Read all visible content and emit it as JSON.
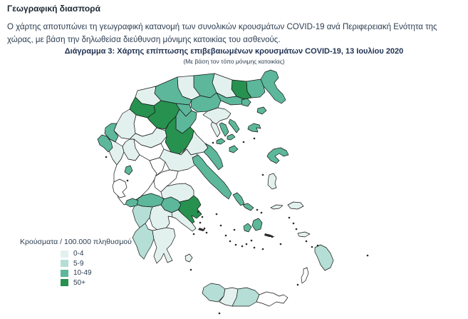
{
  "header": {
    "title": "Γεωγραφική διασπορά",
    "description": "Ο χάρτης αποτυπώνει τη γεωγραφική κατανομή των συνολικών κρουσμάτων COVID-19 ανά Περιφερειακή Ενότητα της χώρας, με βάση την δηλωθείσα διεύθυνση μόνιμης κατοικίας του ασθενούς."
  },
  "figure": {
    "title": "Διάγραμμα 3: Χάρτης επίπτωσης επιβεβαιωμένων κρουσμάτων COVID-19, 13 Ιουλίου 2020",
    "subtitle": "(Με βάση τον τόπο μόνιμης κατοικίας)"
  },
  "legend": {
    "title": "Κρούσματα / 100.000 πληθυσμού"
  },
  "chart_data": {
    "type": "heatmap",
    "subtype": "choropleth-map",
    "geography": "Ελλάδα — Περιφερειακές Ενότητες",
    "date": "13 Ιουλίου 2020",
    "unit": "κρούσματα ανά 100.000 πληθυσμού",
    "no_case_color": "#ffffff",
    "border_color": "#141414",
    "categories": [
      {
        "key": "0-4",
        "label": "0-4",
        "color": "#e3f1ee"
      },
      {
        "key": "5-9",
        "label": "5-9",
        "color": "#b4ded6"
      },
      {
        "key": "10-49",
        "label": "10-49",
        "color": "#5db79a"
      },
      {
        "key": "50+",
        "label": "50+",
        "color": "#27914f"
      }
    ],
    "regions": [
      {
        "id": "evros",
        "name": "Έβρος",
        "range": "10-49"
      },
      {
        "id": "rodopi",
        "name": "Ροδόπη",
        "range": "10-49"
      },
      {
        "id": "xanthi",
        "name": "Ξάνθη",
        "range": "50+"
      },
      {
        "id": "drama",
        "name": "Δράμα",
        "range": "0-4"
      },
      {
        "id": "kavala",
        "name": "Καβάλα",
        "range": "10-49"
      },
      {
        "id": "serres",
        "name": "Σέρρες",
        "range": "10-49"
      },
      {
        "id": "kilkis",
        "name": "Κιλκίς",
        "range": "0-4"
      },
      {
        "id": "pella",
        "name": "Πέλλα",
        "range": "10-49"
      },
      {
        "id": "florina",
        "name": "Φλώρινα",
        "range": "0-4"
      },
      {
        "id": "kastoria",
        "name": "Καστοριά",
        "range": "50+"
      },
      {
        "id": "kozani",
        "name": "Κοζάνη",
        "range": "50+"
      },
      {
        "id": "imathia",
        "name": "Ημαθία",
        "range": "10-49"
      },
      {
        "id": "pieria",
        "name": "Πιερία",
        "range": "10-49"
      },
      {
        "id": "thessaloniki",
        "name": "Θεσσαλονίκη",
        "range": "10-49"
      },
      {
        "id": "chalkidiki",
        "name": "Χαλκιδική",
        "range": "0-4"
      },
      {
        "id": "agion_oros",
        "name": "Άγιον Όρος",
        "range": "10-49"
      },
      {
        "id": "thasos",
        "name": "Θάσος",
        "range": "10-49"
      },
      {
        "id": "samothraki",
        "name": "Σαμοθράκη",
        "range": "10-49"
      },
      {
        "id": "grevena",
        "name": "Γρεβενά",
        "range": "none"
      },
      {
        "id": "ioannina",
        "name": "Ιωάννινα",
        "range": "0-4"
      },
      {
        "id": "thesprotia",
        "name": "Θεσπρωτία",
        "range": "10-49"
      },
      {
        "id": "preveza",
        "name": "Πρέβεζα",
        "range": "0-4"
      },
      {
        "id": "arta",
        "name": "Άρτα",
        "range": "0-4"
      },
      {
        "id": "trikala",
        "name": "Τρίκαλα",
        "range": "0-4"
      },
      {
        "id": "karditsa",
        "name": "Καρδίτσα",
        "range": "none"
      },
      {
        "id": "larissa",
        "name": "Λάρισα",
        "range": "50+"
      },
      {
        "id": "magnisia",
        "name": "Μαγνησία",
        "range": "0-4"
      },
      {
        "id": "pilio",
        "name": "Πήλιο (Μαγνησία)",
        "range": "10-49"
      },
      {
        "id": "sporades",
        "name": "Σποράδες",
        "range": "10-49"
      },
      {
        "id": "skyros",
        "name": "Σκύρος",
        "range": "10-49"
      },
      {
        "id": "fthiotida",
        "name": "Φθιώτιδα",
        "range": "0-4"
      },
      {
        "id": "evrytania",
        "name": "Ευρυτανία",
        "range": "none"
      },
      {
        "id": "fokida",
        "name": "Φωκίδα",
        "range": "none"
      },
      {
        "id": "voiotia",
        "name": "Βοιωτία",
        "range": "0-4"
      },
      {
        "id": "evia",
        "name": "Εύβοια",
        "range": "10-49"
      },
      {
        "id": "attiki",
        "name": "Αττική",
        "range": "50+"
      },
      {
        "id": "aitoloakarnania",
        "name": "Αιτωλοακαρνανία",
        "range": "none"
      },
      {
        "id": "achaia",
        "name": "Αχαΐα",
        "range": "10-49"
      },
      {
        "id": "korinthia",
        "name": "Κορινθία",
        "range": "10-49"
      },
      {
        "id": "argolida",
        "name": "Αργολίδα",
        "range": "0-4"
      },
      {
        "id": "arkadia",
        "name": "Αρκαδία",
        "range": "0-4"
      },
      {
        "id": "ilia",
        "name": "Ηλεία",
        "range": "5-9"
      },
      {
        "id": "messinia",
        "name": "Μεσσηνία",
        "range": "5-9"
      },
      {
        "id": "lakonia",
        "name": "Λακωνία",
        "range": "0-4"
      },
      {
        "id": "kythira",
        "name": "Κύθηρα",
        "range": "0-4"
      },
      {
        "id": "kerkyra",
        "name": "Κέρκυρα",
        "range": "10-49"
      },
      {
        "id": "lefkada",
        "name": "Λευκάδα",
        "range": "10-49"
      },
      {
        "id": "kefallinia",
        "name": "Κεφαλληνία",
        "range": "none"
      },
      {
        "id": "zakynthos",
        "name": "Ζάκυνθος",
        "range": "10-49"
      },
      {
        "id": "lesvos",
        "name": "Λέσβος",
        "range": "10-49"
      },
      {
        "id": "limnos",
        "name": "Λήμνος",
        "range": "10-49"
      },
      {
        "id": "chios",
        "name": "Χίος",
        "range": "0-4"
      },
      {
        "id": "samos",
        "name": "Σάμος",
        "range": "0-4"
      },
      {
        "id": "ikaria",
        "name": "Ικαρία",
        "range": "0-4"
      },
      {
        "id": "andros",
        "name": "Άνδρος",
        "range": "10-49"
      },
      {
        "id": "tinos",
        "name": "Τήνος",
        "range": "10-49"
      },
      {
        "id": "paros",
        "name": "Πάρος",
        "range": "10-49"
      },
      {
        "id": "naxos",
        "name": "Νάξος",
        "range": "10-49"
      },
      {
        "id": "kos",
        "name": "Κως",
        "range": "0-4"
      },
      {
        "id": "rodos",
        "name": "Ρόδος",
        "range": "5-9"
      },
      {
        "id": "karpathos",
        "name": "Κάρπαθος",
        "range": "none"
      },
      {
        "id": "chania",
        "name": "Χανιά",
        "range": "5-9"
      },
      {
        "id": "rethymno",
        "name": "Ρέθυμνο",
        "range": "0-4"
      },
      {
        "id": "irakleio",
        "name": "Ηράκλειο",
        "range": "5-9"
      },
      {
        "id": "lasithi",
        "name": "Λασίθι",
        "range": "none"
      }
    ]
  }
}
